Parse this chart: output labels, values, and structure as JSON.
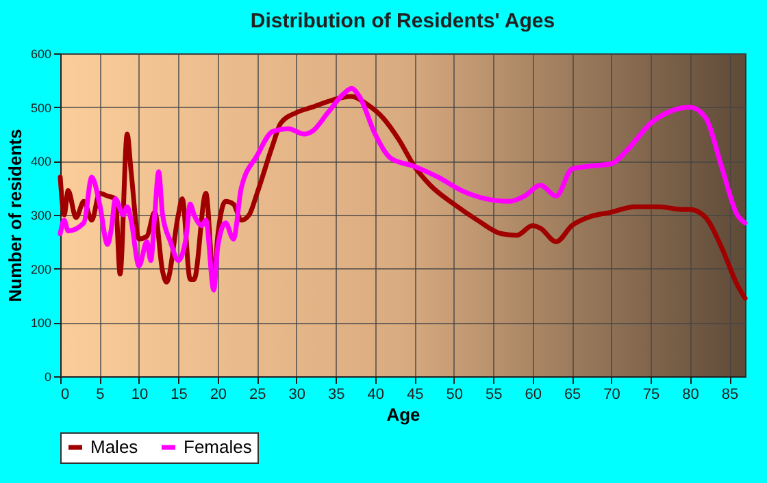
{
  "chart_data": {
    "type": "line",
    "title": "Distribution of Residents' Ages",
    "xlabel": "Age",
    "ylabel": "Number of residents",
    "xlim": [
      0,
      87
    ],
    "xticks": [
      0,
      5,
      10,
      15,
      20,
      25,
      30,
      35,
      40,
      45,
      50,
      55,
      60,
      65,
      70,
      75,
      80,
      85
    ],
    "ylim": [
      0,
      600
    ],
    "yticks": [
      0,
      100,
      200,
      300,
      400,
      500,
      600
    ],
    "grid": true,
    "legend": "bottom",
    "series": [
      {
        "name": "Males",
        "color": "#a00000",
        "x": [
          0,
          0.5,
          1,
          2,
          3,
          4,
          5,
          6,
          7,
          7.6,
          8.5,
          9,
          10,
          11,
          12,
          13,
          13.5,
          15,
          15.5,
          16.5,
          17,
          18.5,
          19.5,
          20,
          21,
          22,
          23,
          24,
          25,
          27,
          28,
          30,
          32,
          35,
          37,
          39,
          41,
          43,
          45,
          47,
          50,
          53,
          56,
          58,
          60,
          61,
          63,
          65,
          67,
          70,
          73,
          76,
          79,
          80,
          82,
          84,
          86,
          87
        ],
        "values": [
          370,
          300,
          345,
          295,
          325,
          290,
          340,
          335,
          330,
          190,
          450,
          380,
          255,
          260,
          305,
          195,
          175,
          300,
          330,
          180,
          180,
          340,
          175,
          260,
          325,
          320,
          290,
          300,
          340,
          430,
          470,
          490,
          500,
          515,
          520,
          505,
          480,
          440,
          390,
          355,
          320,
          290,
          265,
          262,
          280,
          275,
          250,
          280,
          295,
          305,
          315,
          315,
          310,
          310,
          295,
          240,
          170,
          145
        ]
      },
      {
        "name": "Females",
        "color": "#ff00ff",
        "x": [
          0,
          0.5,
          1,
          3,
          4,
          5,
          6,
          6.5,
          7,
          8,
          8.5,
          9,
          10,
          11,
          11.5,
          12,
          12.5,
          13,
          14,
          15,
          16,
          16.5,
          17,
          18,
          18.5,
          19.5,
          20,
          21,
          22,
          23,
          25,
          27,
          29,
          31,
          32,
          34,
          36,
          37,
          38,
          40,
          42,
          45,
          48,
          51,
          54,
          57,
          59,
          61,
          63,
          65,
          67,
          70,
          72,
          75,
          78,
          80,
          82,
          84,
          86,
          87
        ],
        "values": [
          265,
          290,
          270,
          285,
          370,
          320,
          245,
          275,
          330,
          300,
          315,
          290,
          205,
          250,
          215,
          300,
          380,
          300,
          250,
          215,
          260,
          320,
          300,
          280,
          290,
          160,
          240,
          285,
          255,
          350,
          410,
          455,
          460,
          450,
          455,
          490,
          525,
          535,
          520,
          450,
          405,
          390,
          370,
          345,
          330,
          325,
          335,
          355,
          335,
          385,
          390,
          395,
          420,
          470,
          495,
          500,
          480,
          390,
          300,
          285
        ]
      }
    ]
  }
}
